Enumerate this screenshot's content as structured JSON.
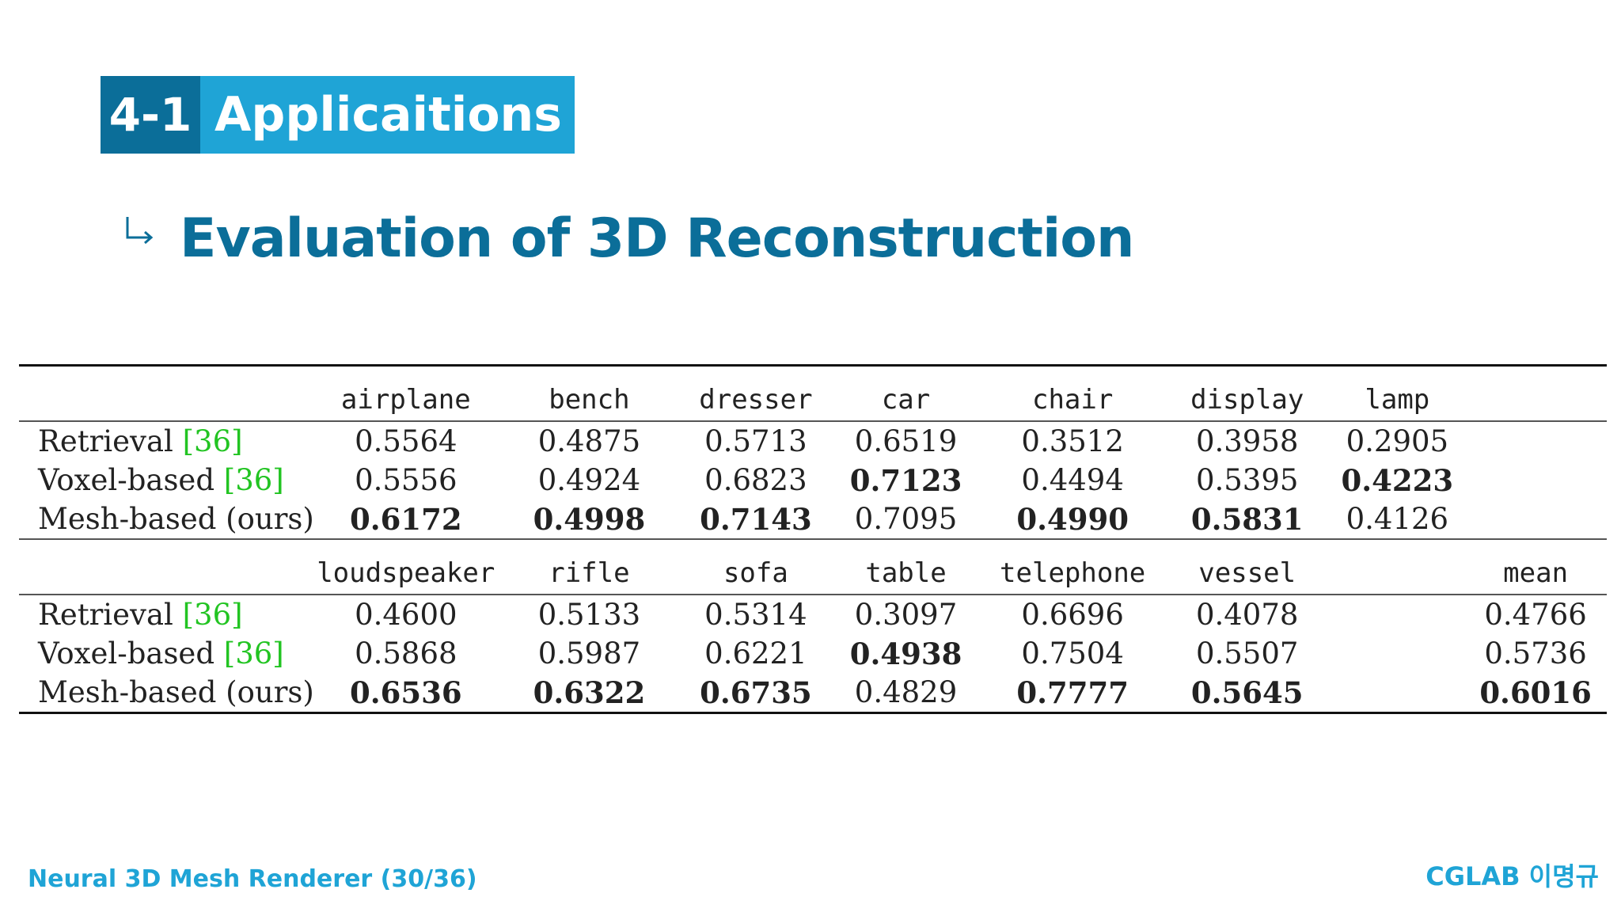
{
  "header": {
    "section_number": "4-1",
    "section_title": "Applicaitions",
    "subtitle": "Evaluation of 3D Reconstruction"
  },
  "table": {
    "blocks": [
      {
        "columns": [
          "airplane",
          "bench",
          "dresser",
          "car",
          "chair",
          "display",
          "lamp",
          ""
        ],
        "rows": [
          {
            "method": "Retrieval",
            "cite": "[36]",
            "values": [
              "0.5564",
              "0.4875",
              "0.5713",
              "0.6519",
              "0.3512",
              "0.3958",
              "0.2905",
              ""
            ],
            "best": [
              false,
              false,
              false,
              false,
              false,
              false,
              false,
              false
            ]
          },
          {
            "method": "Voxel-based",
            "cite": "[36]",
            "values": [
              "0.5556",
              "0.4924",
              "0.6823",
              "0.7123",
              "0.4494",
              "0.5395",
              "0.4223",
              ""
            ],
            "best": [
              false,
              false,
              false,
              true,
              false,
              false,
              true,
              false
            ]
          },
          {
            "method": "Mesh-based (ours)",
            "cite": "",
            "values": [
              "0.6172",
              "0.4998",
              "0.7143",
              "0.7095",
              "0.4990",
              "0.5831",
              "0.4126",
              ""
            ],
            "best": [
              true,
              true,
              true,
              false,
              true,
              true,
              false,
              false
            ]
          }
        ]
      },
      {
        "columns": [
          "loudspeaker",
          "rifle",
          "sofa",
          "table",
          "telephone",
          "vessel",
          "",
          "mean"
        ],
        "rows": [
          {
            "method": "Retrieval",
            "cite": "[36]",
            "values": [
              "0.4600",
              "0.5133",
              "0.5314",
              "0.3097",
              "0.6696",
              "0.4078",
              "",
              "0.4766"
            ],
            "best": [
              false,
              false,
              false,
              false,
              false,
              false,
              false,
              false
            ]
          },
          {
            "method": "Voxel-based",
            "cite": "[36]",
            "values": [
              "0.5868",
              "0.5987",
              "0.6221",
              "0.4938",
              "0.7504",
              "0.5507",
              "",
              "0.5736"
            ],
            "best": [
              false,
              false,
              false,
              true,
              false,
              false,
              false,
              false
            ]
          },
          {
            "method": "Mesh-based (ours)",
            "cite": "",
            "values": [
              "0.6536",
              "0.6322",
              "0.6735",
              "0.4829",
              "0.7777",
              "0.5645",
              "",
              "0.6016"
            ],
            "best": [
              true,
              true,
              true,
              false,
              true,
              true,
              false,
              true
            ]
          }
        ]
      }
    ]
  },
  "footer": {
    "left": "Neural 3D Mesh Renderer (30/36)",
    "right": "CGLAB 이명규"
  },
  "colors": {
    "badge_dark": "#0b6e99",
    "badge_light": "#1fa4d6",
    "citation": "#22c422"
  }
}
